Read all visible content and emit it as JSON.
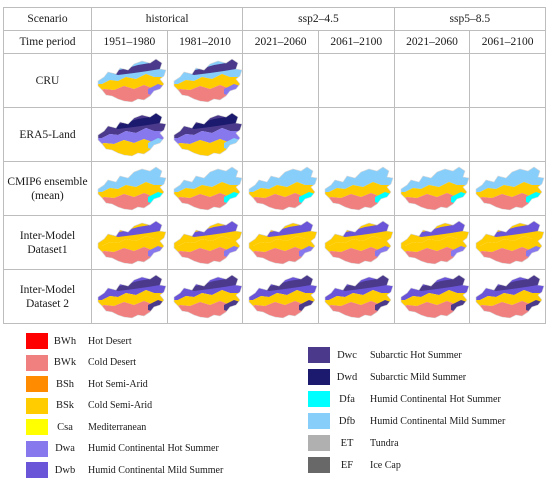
{
  "table": {
    "scenario_label": "Scenario",
    "time_period_label": "Time period",
    "scenarios": [
      "historical",
      "ssp2–4.5",
      "ssp5–8.5"
    ],
    "periods": [
      "1951–1980",
      "1981–2010",
      "2021–2060",
      "2061–2100",
      "2021–2060",
      "2061–2100"
    ],
    "rows": [
      {
        "label": "CRU",
        "variant": "cru",
        "cells": [
          true,
          true,
          false,
          false,
          false,
          false
        ]
      },
      {
        "label": "ERA5-Land",
        "variant": "era5",
        "cells": [
          true,
          true,
          false,
          false,
          false,
          false
        ]
      },
      {
        "label": "CMIP6 ensemble (mean)",
        "variant": "cmip",
        "cells": [
          true,
          true,
          true,
          true,
          true,
          true
        ]
      },
      {
        "label": "Inter-Model Dataset1",
        "variant": "im1",
        "cells": [
          true,
          true,
          true,
          true,
          true,
          true
        ]
      },
      {
        "label": "Inter-Model Dataset 2",
        "variant": "im2",
        "cells": [
          true,
          true,
          true,
          true,
          true,
          true
        ]
      }
    ]
  },
  "legend": {
    "left": [
      {
        "code": "BWh",
        "name": "Hot Desert",
        "color": "#ff0000"
      },
      {
        "code": "BWk",
        "name": "Cold Desert",
        "color": "#f08080"
      },
      {
        "code": "BSh",
        "name": "Hot Semi-Arid",
        "color": "#ff8c00"
      },
      {
        "code": "BSk",
        "name": "Cold Semi-Arid",
        "color": "#ffcc00"
      },
      {
        "code": "Csa",
        "name": "Mediterranean",
        "color": "#ffff00"
      },
      {
        "code": "Dwa",
        "name": "Humid Continental Hot Summer",
        "color": "#8878ee"
      },
      {
        "code": "Dwb",
        "name": "Humid Continental Mild Summer",
        "color": "#6a55d8"
      }
    ],
    "right": [
      {
        "code": "Dwc",
        "name": "Subarctic Hot Summer",
        "color": "#4b3a8c"
      },
      {
        "code": "Dwd",
        "name": "Subarctic Mild Summer",
        "color": "#1c1a6e"
      },
      {
        "code": "Dfa",
        "name": "Humid Continental Hot Summer",
        "color": "#00ffff"
      },
      {
        "code": "Dfb",
        "name": "Humid Continental Mild Summer",
        "color": "#87cefa"
      },
      {
        "code": "ET",
        "name": "Tundra",
        "color": "#b0b0b0"
      },
      {
        "code": "EF",
        "name": "Ice Cap",
        "color": "#686868"
      }
    ]
  }
}
